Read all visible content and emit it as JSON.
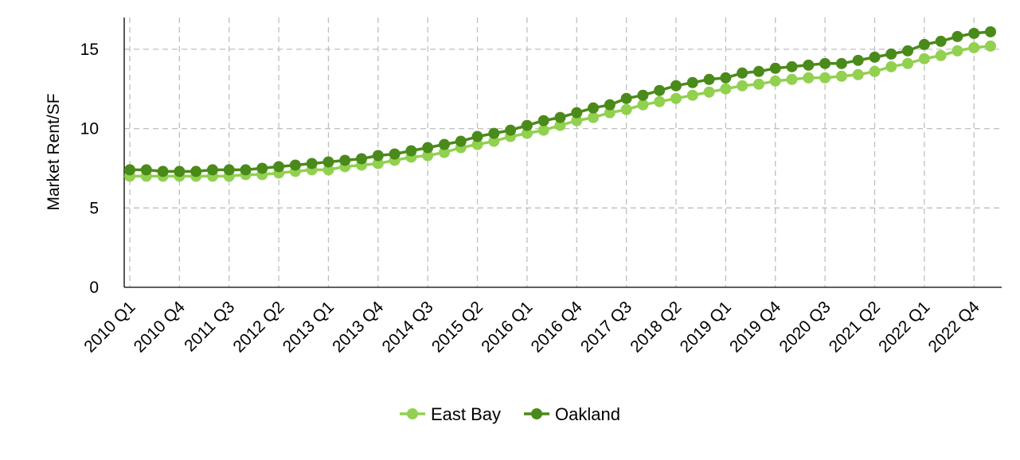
{
  "chart_data": {
    "type": "line",
    "title": "",
    "xlabel": "",
    "ylabel": "Market Rent/SF",
    "ylim": [
      0,
      17
    ],
    "yticks": [
      0,
      5,
      10,
      15
    ],
    "grid": true,
    "legend_position": "bottom",
    "categories": [
      "2010 Q1",
      "2010 Q2",
      "2010 Q3",
      "2010 Q4",
      "2011 Q1",
      "2011 Q2",
      "2011 Q3",
      "2011 Q4",
      "2012 Q1",
      "2012 Q2",
      "2012 Q3",
      "2012 Q4",
      "2013 Q1",
      "2013 Q2",
      "2013 Q3",
      "2013 Q4",
      "2014 Q1",
      "2014 Q2",
      "2014 Q3",
      "2014 Q4",
      "2015 Q1",
      "2015 Q2",
      "2015 Q3",
      "2015 Q4",
      "2016 Q1",
      "2016 Q2",
      "2016 Q3",
      "2016 Q4",
      "2017 Q1",
      "2017 Q2",
      "2017 Q3",
      "2017 Q4",
      "2018 Q1",
      "2018 Q2",
      "2018 Q3",
      "2018 Q4",
      "2019 Q1",
      "2019 Q2",
      "2019 Q3",
      "2019 Q4",
      "2020 Q1",
      "2020 Q2",
      "2020 Q3",
      "2020 Q4",
      "2021 Q1",
      "2021 Q2",
      "2021 Q3",
      "2021 Q4",
      "2022 Q1",
      "2022 Q2",
      "2022 Q3",
      "2022 Q4",
      "2023 Q1"
    ],
    "tick_labels": [
      "2010 Q1",
      "2010 Q4",
      "2011 Q3",
      "2012 Q2",
      "2013 Q1",
      "2013 Q4",
      "2014 Q3",
      "2015 Q2",
      "2016 Q1",
      "2016 Q4",
      "2017 Q3",
      "2018 Q2",
      "2019 Q1",
      "2019 Q4",
      "2020 Q3",
      "2021 Q2",
      "2022 Q1",
      "2022 Q4"
    ],
    "series": [
      {
        "name": "East Bay",
        "color": "#92d050",
        "values": [
          7.0,
          7.0,
          7.0,
          7.0,
          7.0,
          7.0,
          7.0,
          7.1,
          7.1,
          7.2,
          7.3,
          7.4,
          7.4,
          7.6,
          7.7,
          7.8,
          8.0,
          8.2,
          8.3,
          8.5,
          8.8,
          9.0,
          9.2,
          9.5,
          9.7,
          9.9,
          10.2,
          10.5,
          10.7,
          11.0,
          11.2,
          11.5,
          11.7,
          11.9,
          12.1,
          12.3,
          12.5,
          12.7,
          12.8,
          13.0,
          13.1,
          13.2,
          13.2,
          13.3,
          13.4,
          13.6,
          13.9,
          14.1,
          14.4,
          14.6,
          14.9,
          15.1,
          15.2
        ]
      },
      {
        "name": "Oakland",
        "color": "#4a8a1a",
        "values": [
          7.4,
          7.4,
          7.3,
          7.3,
          7.3,
          7.4,
          7.4,
          7.4,
          7.5,
          7.6,
          7.7,
          7.8,
          7.9,
          8.0,
          8.1,
          8.3,
          8.4,
          8.6,
          8.8,
          9.0,
          9.2,
          9.5,
          9.7,
          9.9,
          10.2,
          10.5,
          10.7,
          11.0,
          11.3,
          11.5,
          11.9,
          12.1,
          12.4,
          12.7,
          12.9,
          13.1,
          13.2,
          13.5,
          13.6,
          13.8,
          13.9,
          14.0,
          14.1,
          14.1,
          14.3,
          14.5,
          14.7,
          14.9,
          15.3,
          15.5,
          15.8,
          16.0,
          16.1
        ]
      }
    ]
  }
}
